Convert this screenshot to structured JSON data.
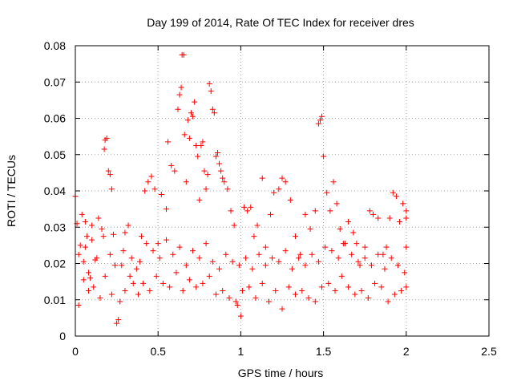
{
  "chart_data": {
    "type": "scatter",
    "title": "Day 199 of 2014, Rate Of TEC Index for receiver dres",
    "xlabel": "GPS time / hours",
    "ylabel": "ROTI / TECUs",
    "xlim": [
      0,
      2.5
    ],
    "ylim": [
      0,
      0.08
    ],
    "xticks": [
      0,
      0.5,
      1,
      1.5,
      2,
      2.5
    ],
    "xtick_labels": [
      "0",
      "0.5",
      "1",
      "1.5",
      "2",
      "2.5"
    ],
    "yticks": [
      0,
      0.01,
      0.02,
      0.03,
      0.04,
      0.05,
      0.06,
      0.07,
      0.08
    ],
    "ytick_labels": [
      "0",
      "0.01",
      "0.02",
      "0.03",
      "0.04",
      "0.05",
      "0.06",
      "0.07",
      "0.08"
    ],
    "grid": true,
    "marker": "+",
    "color": "#ff0000",
    "series": [
      {
        "name": "ROTI",
        "points": [
          [
            0.0,
            0.0385
          ],
          [
            0.01,
            0.031
          ],
          [
            0.02,
            0.0085
          ],
          [
            0.03,
            0.025
          ],
          [
            0.04,
            0.0335
          ],
          [
            0.05,
            0.0205
          ],
          [
            0.06,
            0.0315
          ],
          [
            0.07,
            0.0275
          ],
          [
            0.08,
            0.0125
          ],
          [
            0.09,
            0.016
          ],
          [
            0.1,
            0.0305
          ],
          [
            0.12,
            0.021
          ],
          [
            0.14,
            0.0325
          ],
          [
            0.16,
            0.0295
          ],
          [
            0.175,
            0.0515
          ],
          [
            0.18,
            0.054
          ],
          [
            0.19,
            0.0545
          ],
          [
            0.2,
            0.0455
          ],
          [
            0.21,
            0.0445
          ],
          [
            0.22,
            0.0405
          ],
          [
            0.23,
            0.028
          ],
          [
            0.25,
            0.0035
          ],
          [
            0.26,
            0.0045
          ],
          [
            0.28,
            0.0195
          ],
          [
            0.3,
            0.0285
          ],
          [
            0.32,
            0.0305
          ],
          [
            0.35,
            0.0145
          ],
          [
            0.38,
            0.0115
          ],
          [
            0.4,
            0.0275
          ],
          [
            0.42,
            0.04
          ],
          [
            0.44,
            0.0425
          ],
          [
            0.46,
            0.044
          ],
          [
            0.48,
            0.0405
          ],
          [
            0.5,
            0.0255
          ],
          [
            0.52,
            0.039
          ],
          [
            0.55,
            0.035
          ],
          [
            0.56,
            0.0535
          ],
          [
            0.58,
            0.047
          ],
          [
            0.6,
            0.0455
          ],
          [
            0.62,
            0.0625
          ],
          [
            0.63,
            0.0665
          ],
          [
            0.64,
            0.0685
          ],
          [
            0.645,
            0.0775
          ],
          [
            0.655,
            0.0775
          ],
          [
            0.66,
            0.0555
          ],
          [
            0.67,
            0.0425
          ],
          [
            0.68,
            0.0595
          ],
          [
            0.69,
            0.0545
          ],
          [
            0.7,
            0.0615
          ],
          [
            0.71,
            0.0605
          ],
          [
            0.72,
            0.0645
          ],
          [
            0.73,
            0.0525
          ],
          [
            0.74,
            0.0495
          ],
          [
            0.75,
            0.0375
          ],
          [
            0.76,
            0.0525
          ],
          [
            0.77,
            0.0535
          ],
          [
            0.78,
            0.0455
          ],
          [
            0.79,
            0.0405
          ],
          [
            0.8,
            0.0445
          ],
          [
            0.81,
            0.0695
          ],
          [
            0.82,
            0.0675
          ],
          [
            0.83,
            0.0625
          ],
          [
            0.84,
            0.0615
          ],
          [
            0.85,
            0.0495
          ],
          [
            0.86,
            0.0505
          ],
          [
            0.87,
            0.0475
          ],
          [
            0.88,
            0.0455
          ],
          [
            0.89,
            0.0435
          ],
          [
            0.9,
            0.0425
          ],
          [
            0.92,
            0.0405
          ],
          [
            0.94,
            0.0345
          ],
          [
            0.96,
            0.0305
          ],
          [
            0.98,
            0.0085
          ],
          [
            1.0,
            0.0055
          ],
          [
            1.02,
            0.0355
          ],
          [
            1.04,
            0.0345
          ],
          [
            1.06,
            0.0355
          ],
          [
            1.08,
            0.0275
          ],
          [
            1.1,
            0.0305
          ],
          [
            1.13,
            0.0435
          ],
          [
            1.15,
            0.0245
          ],
          [
            1.18,
            0.0335
          ],
          [
            1.2,
            0.0395
          ],
          [
            1.23,
            0.0405
          ],
          [
            1.25,
            0.0435
          ],
          [
            1.27,
            0.0425
          ],
          [
            1.3,
            0.0375
          ],
          [
            1.33,
            0.0275
          ],
          [
            1.36,
            0.0225
          ],
          [
            1.39,
            0.0335
          ],
          [
            1.42,
            0.0295
          ],
          [
            1.45,
            0.0345
          ],
          [
            1.47,
            0.0585
          ],
          [
            1.48,
            0.0595
          ],
          [
            1.49,
            0.0605
          ],
          [
            1.5,
            0.0495
          ],
          [
            1.52,
            0.0395
          ],
          [
            1.54,
            0.0345
          ],
          [
            1.56,
            0.0425
          ],
          [
            1.58,
            0.0365
          ],
          [
            1.6,
            0.0295
          ],
          [
            1.62,
            0.0255
          ],
          [
            1.65,
            0.0315
          ],
          [
            1.68,
            0.0285
          ],
          [
            1.7,
            0.0255
          ],
          [
            1.72,
            0.0195
          ],
          [
            1.75,
            0.0245
          ],
          [
            1.78,
            0.0345
          ],
          [
            1.8,
            0.0335
          ],
          [
            1.83,
            0.0325
          ],
          [
            1.86,
            0.0225
          ],
          [
            1.88,
            0.0245
          ],
          [
            1.9,
            0.0325
          ],
          [
            1.92,
            0.0395
          ],
          [
            1.94,
            0.0385
          ],
          [
            1.96,
            0.0315
          ],
          [
            1.98,
            0.0365
          ],
          [
            2.0,
            0.0345
          ],
          [
            2.0,
            0.0325
          ],
          [
            2.0,
            0.0245
          ],
          [
            0.05,
            0.0155
          ],
          [
            0.08,
            0.0175
          ],
          [
            0.11,
            0.0135
          ],
          [
            0.15,
            0.0105
          ],
          [
            0.18,
            0.0165
          ],
          [
            0.22,
            0.0115
          ],
          [
            0.27,
            0.0095
          ],
          [
            0.3,
            0.0125
          ],
          [
            0.33,
            0.0165
          ],
          [
            0.37,
            0.0185
          ],
          [
            0.41,
            0.0145
          ],
          [
            0.45,
            0.0125
          ],
          [
            0.49,
            0.0165
          ],
          [
            0.53,
            0.0145
          ],
          [
            0.57,
            0.0135
          ],
          [
            0.61,
            0.0175
          ],
          [
            0.65,
            0.0125
          ],
          [
            0.69,
            0.0155
          ],
          [
            0.73,
            0.0135
          ],
          [
            0.77,
            0.0145
          ],
          [
            0.81,
            0.0165
          ],
          [
            0.85,
            0.0115
          ],
          [
            0.89,
            0.0125
          ],
          [
            0.93,
            0.0105
          ],
          [
            0.97,
            0.0095
          ],
          [
            1.01,
            0.0125
          ],
          [
            1.05,
            0.0135
          ],
          [
            1.09,
            0.0105
          ],
          [
            1.13,
            0.0145
          ],
          [
            1.17,
            0.0095
          ],
          [
            1.21,
            0.0125
          ],
          [
            1.25,
            0.0075
          ],
          [
            1.29,
            0.0135
          ],
          [
            1.33,
            0.0115
          ],
          [
            1.37,
            0.0125
          ],
          [
            1.41,
            0.0105
          ],
          [
            1.45,
            0.0095
          ],
          [
            1.49,
            0.0135
          ],
          [
            1.53,
            0.0145
          ],
          [
            1.57,
            0.0125
          ],
          [
            1.61,
            0.0165
          ],
          [
            1.65,
            0.0135
          ],
          [
            1.69,
            0.0115
          ],
          [
            1.73,
            0.0125
          ],
          [
            1.77,
            0.0105
          ],
          [
            1.81,
            0.0145
          ],
          [
            1.85,
            0.0135
          ],
          [
            1.89,
            0.0095
          ],
          [
            1.93,
            0.0115
          ],
          [
            1.97,
            0.0125
          ],
          [
            2.0,
            0.0135
          ],
          [
            0.02,
            0.0225
          ],
          [
            0.06,
            0.0245
          ],
          [
            0.1,
            0.0265
          ],
          [
            0.13,
            0.0215
          ],
          [
            0.17,
            0.0275
          ],
          [
            0.21,
            0.0225
          ],
          [
            0.24,
            0.0195
          ],
          [
            0.29,
            0.0235
          ],
          [
            0.34,
            0.0215
          ],
          [
            0.39,
            0.0205
          ],
          [
            0.43,
            0.0255
          ],
          [
            0.47,
            0.0235
          ],
          [
            0.51,
            0.0215
          ],
          [
            0.55,
            0.0265
          ],
          [
            0.59,
            0.0225
          ],
          [
            0.63,
            0.0245
          ],
          [
            0.67,
            0.0195
          ],
          [
            0.71,
            0.0235
          ],
          [
            0.75,
            0.0215
          ],
          [
            0.79,
            0.0255
          ],
          [
            0.83,
            0.0205
          ],
          [
            0.87,
            0.0185
          ],
          [
            0.91,
            0.0225
          ],
          [
            0.95,
            0.0205
          ],
          [
            0.99,
            0.0195
          ],
          [
            1.03,
            0.0215
          ],
          [
            1.07,
            0.0185
          ],
          [
            1.11,
            0.0225
          ],
          [
            1.15,
            0.0195
          ],
          [
            1.19,
            0.0215
          ],
          [
            1.23,
            0.0205
          ],
          [
            1.27,
            0.0235
          ],
          [
            1.31,
            0.0185
          ],
          [
            1.35,
            0.0215
          ],
          [
            1.39,
            0.0195
          ],
          [
            1.43,
            0.0225
          ],
          [
            1.47,
            0.0205
          ],
          [
            1.51,
            0.0245
          ],
          [
            1.55,
            0.0235
          ],
          [
            1.59,
            0.0215
          ],
          [
            1.63,
            0.0255
          ],
          [
            1.67,
            0.0225
          ],
          [
            1.71,
            0.0205
          ],
          [
            1.75,
            0.0215
          ],
          [
            1.79,
            0.0195
          ],
          [
            1.83,
            0.0225
          ],
          [
            1.87,
            0.0185
          ],
          [
            1.91,
            0.0215
          ],
          [
            1.95,
            0.0195
          ],
          [
            1.99,
            0.0175
          ]
        ]
      }
    ]
  }
}
